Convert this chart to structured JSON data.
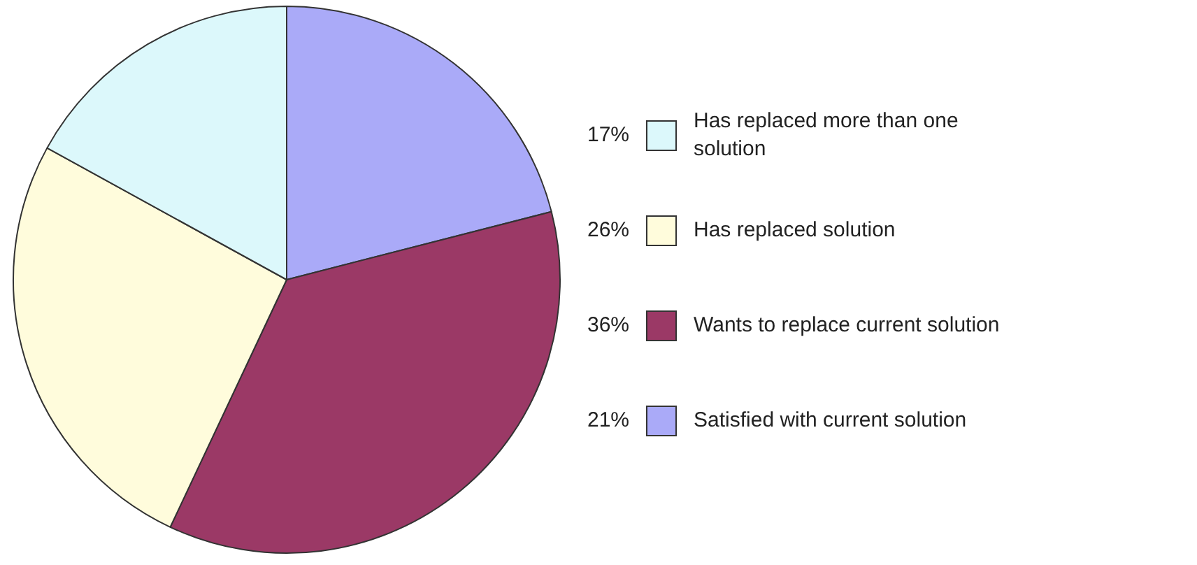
{
  "chart_data": {
    "type": "pie",
    "categories": [
      "Satisfied with current solution",
      "Wants to replace current solution",
      "Has replaced solution",
      "Has replaced more than one solution"
    ],
    "values": [
      21,
      36,
      26,
      17
    ],
    "value_labels": [
      "21%",
      "36%",
      "26%",
      "17%"
    ],
    "colors": [
      "#aaaaf8",
      "#9b3966",
      "#fffcdc",
      "#dcf8fb"
    ],
    "legend": "right"
  }
}
